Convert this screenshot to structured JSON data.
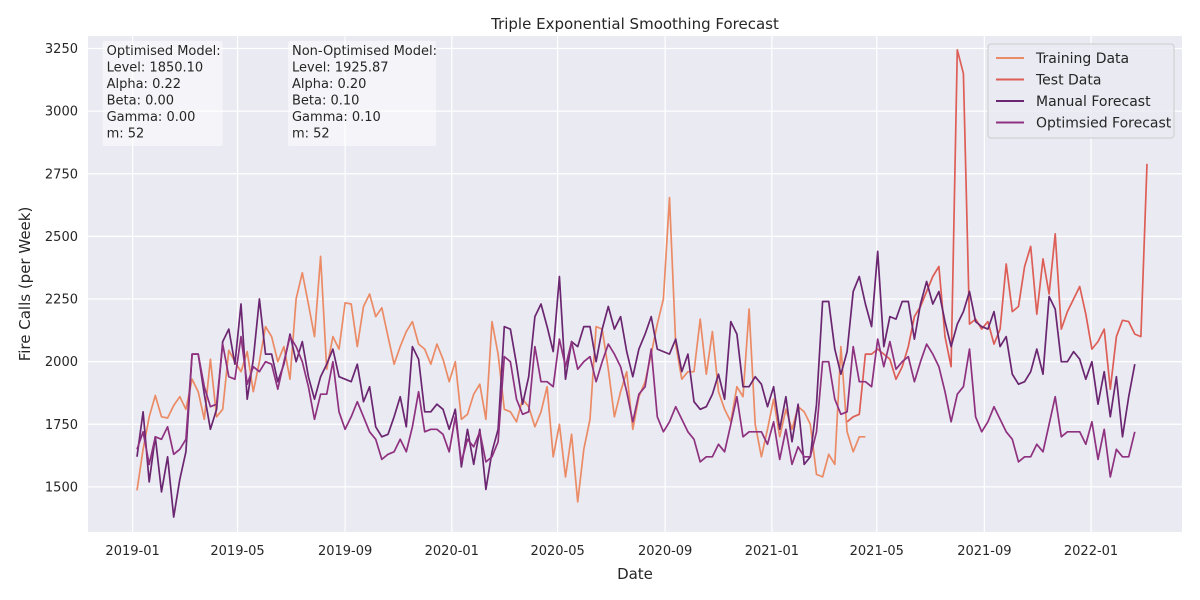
{
  "chart_data": {
    "type": "line",
    "title": "Triple Exponential Smoothing Forecast",
    "xlabel": "Date",
    "ylabel": "Fire Calls (per Week)",
    "xlim": [
      "2018-11-11",
      "2022-04-15"
    ],
    "ylim": [
      1320,
      3300
    ],
    "x_ticks": [
      "2019-01-01",
      "2019-05-01",
      "2019-09-01",
      "2020-01-01",
      "2020-05-01",
      "2020-09-01",
      "2021-01-01",
      "2021-05-01",
      "2021-09-01",
      "2022-01-01"
    ],
    "x_tick_labels": [
      "2019-01",
      "2019-05",
      "2019-09",
      "2020-01",
      "2020-05",
      "2020-09",
      "2021-01",
      "2021-05",
      "2021-09",
      "2022-01"
    ],
    "y_ticks": [
      1500,
      1750,
      2000,
      2250,
      2500,
      2750,
      3000,
      3250
    ],
    "grid": true,
    "legend_position": "top-right",
    "annotations": [
      {
        "lines": [
          "Optimised Model:",
          " Level: 1850.10",
          "Alpha: 0.22",
          "Beta: 0.00",
          "Gamma: 0.00",
          "m: 52"
        ],
        "anchor": [
          "2019-01-01",
          3260
        ]
      },
      {
        "lines": [
          "Non-Optimised Model:",
          "Level: 1925.87",
          "Alpha: 0.20",
          "Beta: 0.10",
          "Gamma: 0.10",
          "m: 52"
        ],
        "anchor": [
          "2019-08-01",
          3260
        ]
      }
    ],
    "series": [
      {
        "name": "Training Data",
        "color": "#eb8b66",
        "start_date": "2019-01-06",
        "interval_days": 7,
        "values": [
          1486,
          1650,
          1780,
          1865,
          1780,
          1775,
          1825,
          1860,
          1810,
          1930,
          1880,
          1770,
          2010,
          1780,
          1810,
          2045,
          2000,
          1960,
          2040,
          1880,
          2000,
          2140,
          2100,
          2000,
          2060,
          1930,
          2250,
          2355,
          2230,
          2100,
          2420,
          1970,
          2100,
          2050,
          2235,
          2230,
          2060,
          2220,
          2270,
          2180,
          2215,
          2100,
          1990,
          2060,
          2120,
          2160,
          2070,
          2050,
          1990,
          2070,
          2010,
          1920,
          2000,
          1770,
          1790,
          1870,
          1910,
          1770,
          2160,
          2030,
          1810,
          1800,
          1760,
          1850,
          1820,
          1740,
          1800,
          1900,
          1620,
          1750,
          1540,
          1710,
          1440,
          1650,
          1770,
          2140,
          2130,
          1970,
          1780,
          1880,
          1960,
          1730,
          1860,
          1920,
          2030,
          2150,
          2250,
          2655,
          2070,
          1930,
          1960,
          1960,
          2170,
          1950,
          2120,
          1880,
          1810,
          1760,
          1900,
          1860,
          2210,
          1750,
          1620,
          1730,
          1850,
          1700,
          1810,
          1730,
          1820,
          1800,
          1750,
          1550,
          1540,
          1630,
          1590,
          2060,
          1720,
          1640,
          1700,
          1700
        ]
      },
      {
        "name": "Test Data",
        "color": "#dd5e56",
        "start_date": "2021-03-28",
        "interval_days": 7,
        "values": [
          1760,
          1780,
          1790,
          2030,
          2030,
          2050,
          2030,
          2010,
          1930,
          1980,
          2060,
          2180,
          2220,
          2280,
          2340,
          2380,
          2100,
          1980,
          3245,
          3150,
          2150,
          2170,
          2130,
          2160,
          2070,
          2130,
          2390,
          2200,
          2220,
          2380,
          2460,
          2190,
          2410,
          2270,
          2510,
          2130,
          2200,
          2250,
          2300,
          2190,
          2050,
          2080,
          2130,
          1890,
          2100,
          2165,
          2160,
          2110,
          2100,
          2790
        ]
      },
      {
        "name": "Manual Forecast",
        "color": "#6a2670",
        "start_date": "2019-01-06",
        "interval_days": 7,
        "values": [
          1620,
          1800,
          1520,
          1700,
          1480,
          1620,
          1380,
          1530,
          1640,
          2030,
          2030,
          1870,
          1730,
          1810,
          2080,
          2130,
          1990,
          2230,
          1850,
          2010,
          2250,
          2030,
          2030,
          1920,
          1990,
          2110,
          2000,
          2080,
          1940,
          1850,
          1940,
          1990,
          2050,
          1940,
          1930,
          1920,
          1990,
          1840,
          1900,
          1740,
          1700,
          1710,
          1780,
          1860,
          1740,
          2060,
          2010,
          1800,
          1800,
          1830,
          1810,
          1730,
          1810,
          1580,
          1730,
          1590,
          1730,
          1490,
          1640,
          1730,
          2140,
          2130,
          1990,
          1830,
          1940,
          2180,
          2230,
          2140,
          2040,
          2340,
          1930,
          2080,
          2060,
          2140,
          2140,
          2000,
          2130,
          2220,
          2130,
          2180,
          2040,
          1940,
          2050,
          2110,
          2180,
          2050,
          2040,
          2030,
          2090,
          1960,
          2030,
          1840,
          1810,
          1820,
          1870,
          1950,
          1850,
          2160,
          2110,
          1900,
          1900,
          1940,
          1910,
          1820,
          1900,
          1730,
          1860,
          1680,
          1830,
          1590,
          1620,
          1830,
          2240,
          2240,
          2050,
          1950,
          2040,
          2280,
          2340,
          2230,
          2140,
          2440,
          2060,
          2180,
          2170,
          2240,
          2240,
          2090,
          2230,
          2320,
          2230,
          2280,
          2160,
          2060,
          2150,
          2200,
          2280,
          2160,
          2140,
          2130,
          2200,
          2060,
          2100,
          1950,
          1910,
          1920,
          1960,
          2050,
          1950,
          2260,
          2210,
          2000,
          2000,
          2040,
          2010,
          1930,
          2000,
          1830,
          1960,
          1780,
          1940,
          1700,
          1860,
          1990
        ]
      },
      {
        "name": "Optimsied Forecast",
        "color": "#8e3280",
        "start_date": "2019-01-06",
        "interval_days": 7,
        "values": [
          1650,
          1720,
          1590,
          1700,
          1690,
          1740,
          1630,
          1650,
          1690,
          2030,
          2030,
          1900,
          1820,
          1830,
          2070,
          1940,
          1930,
          2100,
          1910,
          1980,
          1960,
          2000,
          1990,
          1890,
          2000,
          2100,
          2060,
          2000,
          1900,
          1770,
          1870,
          1870,
          2000,
          1800,
          1730,
          1780,
          1840,
          1780,
          1720,
          1690,
          1610,
          1630,
          1640,
          1690,
          1640,
          1740,
          1880,
          1720,
          1730,
          1730,
          1710,
          1640,
          1780,
          1600,
          1690,
          1660,
          1720,
          1600,
          1620,
          1680,
          2020,
          2000,
          1850,
          1790,
          1800,
          2060,
          1920,
          1920,
          1900,
          2090,
          1980,
          2080,
          1970,
          2000,
          2020,
          1920,
          2000,
          2070,
          2030,
          1980,
          1880,
          1760,
          1870,
          1900,
          2050,
          1780,
          1720,
          1760,
          1820,
          1770,
          1720,
          1690,
          1600,
          1620,
          1620,
          1670,
          1640,
          1750,
          1860,
          1700,
          1720,
          1720,
          1720,
          1670,
          1760,
          1610,
          1730,
          1590,
          1660,
          1620,
          1620,
          1720,
          2000,
          2000,
          1850,
          1790,
          1800,
          2060,
          1920,
          1920,
          1900,
          2090,
          1980,
          2080,
          1970,
          2000,
          2020,
          1920,
          2000,
          2070,
          2030,
          1980,
          1880,
          1760,
          1870,
          1900,
          2050,
          1780,
          1720,
          1760,
          1820,
          1770,
          1720,
          1690,
          1600,
          1620,
          1620,
          1670,
          1640,
          1750,
          1860,
          1700,
          1720,
          1720,
          1720,
          1670,
          1760,
          1610,
          1730,
          1540,
          1650,
          1620,
          1620,
          1720
        ]
      }
    ]
  }
}
